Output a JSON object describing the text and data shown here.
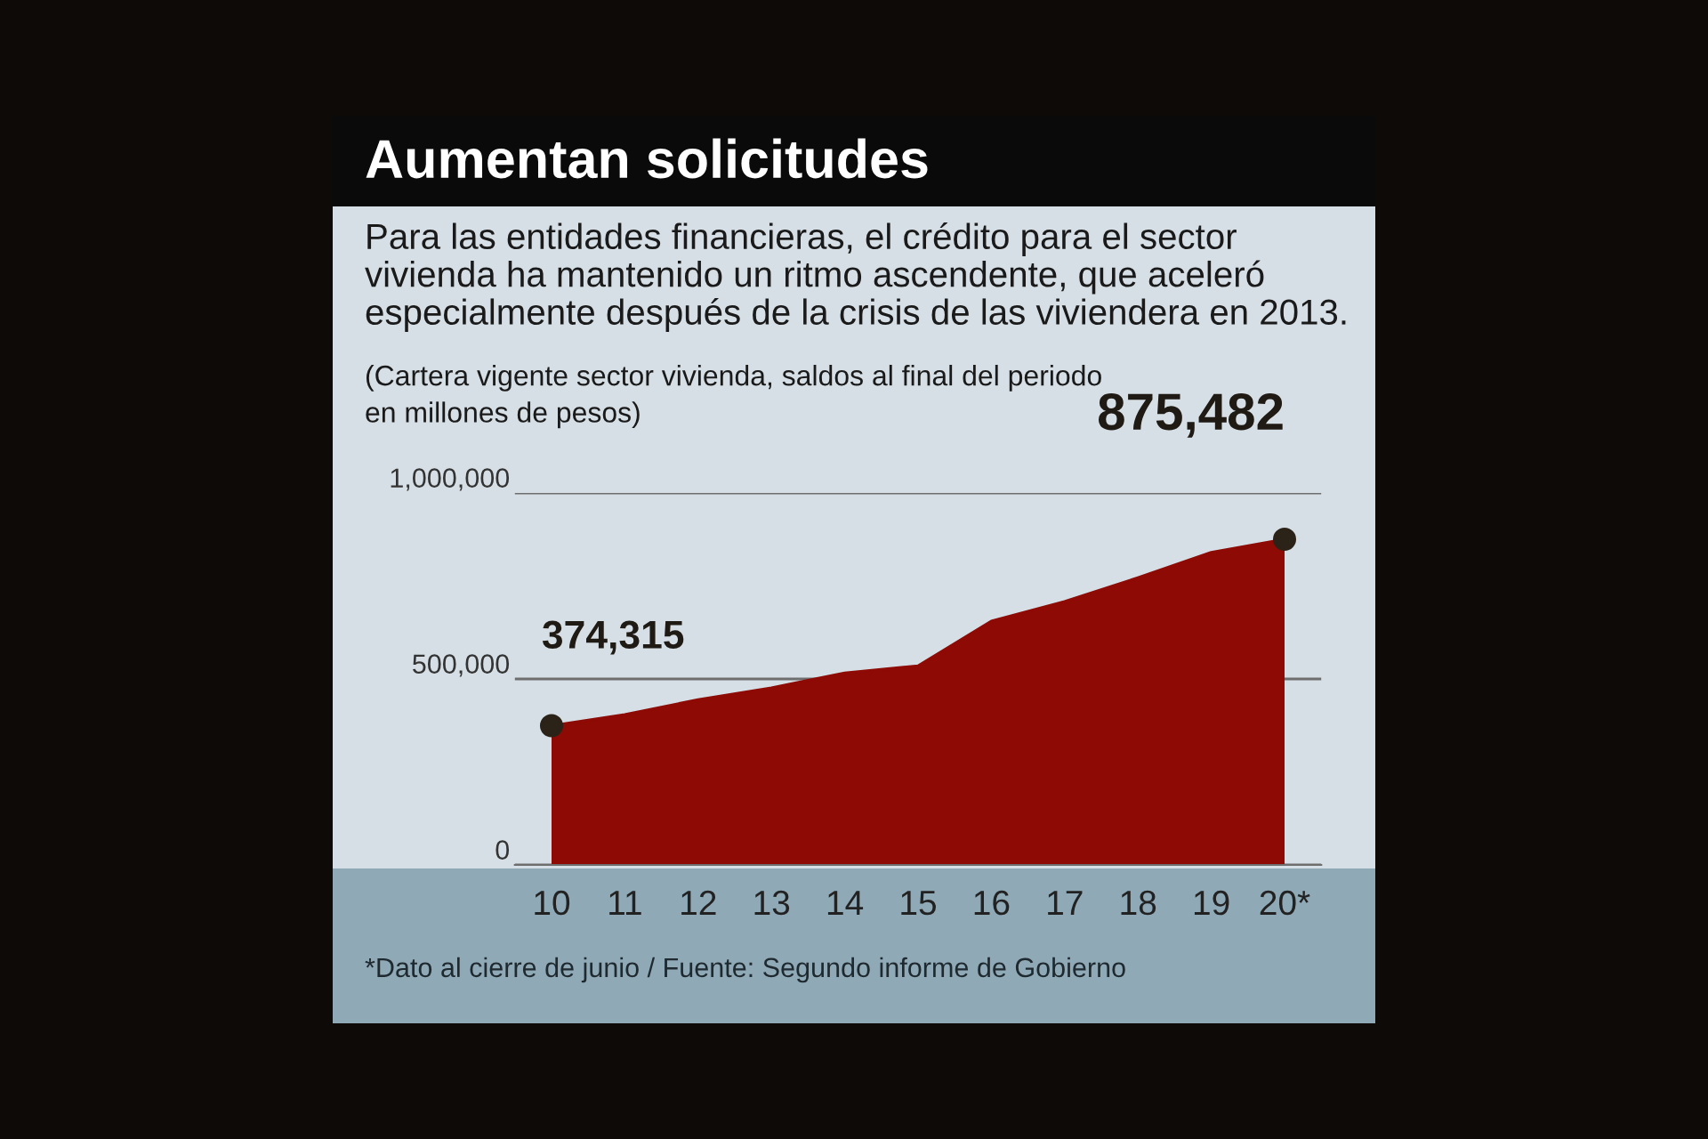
{
  "chart_data": {
    "type": "area",
    "title": "Aumentan solicitudes",
    "subtitle": "Para las entidades financieras, el crédito para el sector\nvivienda ha mantenido un ritmo ascendente, que aceleró\nespecialmente después de la crisis de las viviendera en 2013.",
    "ylabel": "(Cartera vigente sector vivienda, saldos al final del periodo\nen millones de pesos)",
    "categories": [
      "10",
      "11",
      "12",
      "13",
      "14",
      "15",
      "16",
      "17",
      "18",
      "19",
      "20*"
    ],
    "series": [
      {
        "color": "#8e0a05",
        "values": [
          374315,
          404000,
          444000,
          476000,
          516000,
          535000,
          655000,
          708000,
          772000,
          840000,
          875482
        ]
      }
    ],
    "ylim": [
      0,
      1000000
    ],
    "yticks": [
      {
        "value": 0,
        "label": "0"
      },
      {
        "value": 500000,
        "label": "500,000"
      },
      {
        "value": 1000000,
        "label": "1,000,000"
      }
    ],
    "grid": "y",
    "annotations": [
      {
        "text": "374,315",
        "x": "10",
        "y": 374315
      },
      {
        "text": "875,482",
        "x": "20*",
        "y": 875482
      },
      "*Dato al cierre de junio / Fuente: Segundo informe de Gobierno"
    ]
  }
}
